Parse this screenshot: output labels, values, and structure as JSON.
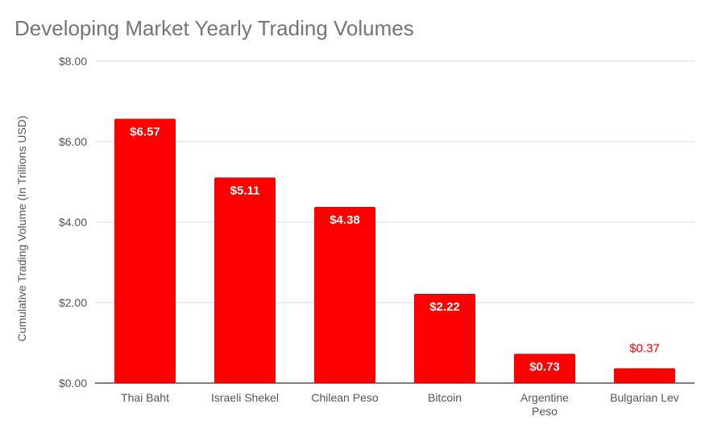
{
  "chart_data": {
    "type": "bar",
    "title": "Developing Market Yearly Trading Volumes",
    "xlabel": "",
    "ylabel": "Cumulative Trading Volume (In Trillions USD)",
    "ylim": [
      0,
      8
    ],
    "yticks": [
      0,
      2,
      4,
      6,
      8
    ],
    "ytick_labels": [
      "$0.00",
      "$2.00",
      "$4.00",
      "$6.00",
      "$8.00"
    ],
    "grid": true,
    "bar_color": "#ff0000",
    "categories": [
      [
        "Thai Baht"
      ],
      [
        "Israeli Shekel"
      ],
      [
        "Chilean Peso"
      ],
      [
        "Bitcoin"
      ],
      [
        "Argentine",
        "Peso"
      ],
      [
        "Bulgarian Lev"
      ]
    ],
    "values": [
      6.57,
      5.11,
      4.38,
      2.22,
      0.73,
      0.37
    ],
    "data_labels": [
      "$6.57",
      "$5.11",
      "$4.38",
      "$2.22",
      "$0.73",
      "$0.37"
    ]
  }
}
